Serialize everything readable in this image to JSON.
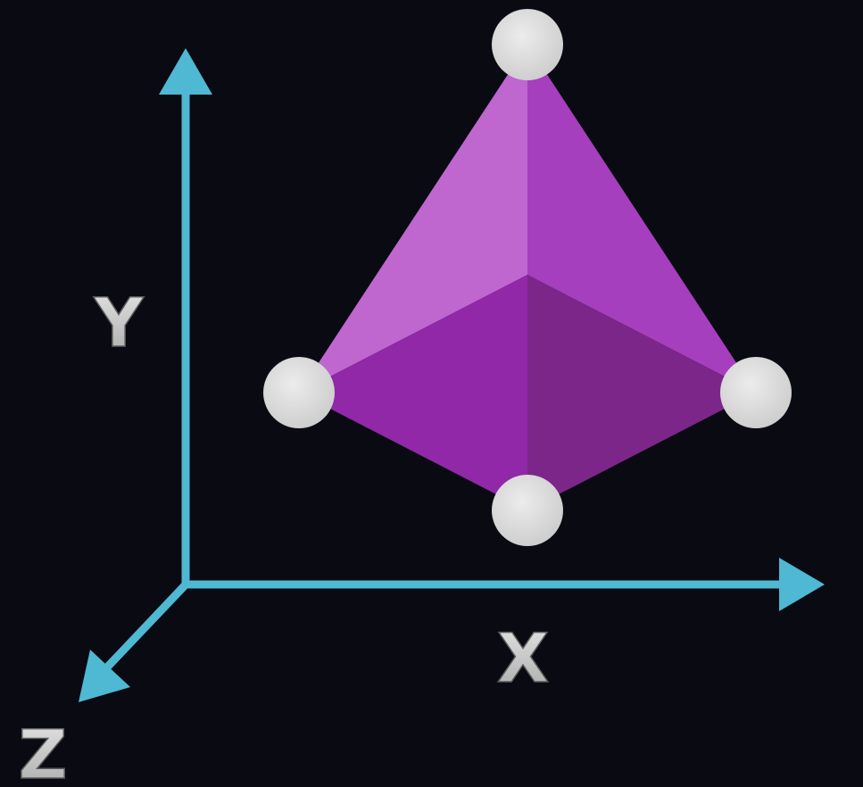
{
  "axes": {
    "x_label": "X",
    "y_label": "Y",
    "z_label": "Z",
    "axis_color": "#4fb8d2",
    "label_color": "#cfcfcf"
  },
  "shape": {
    "vertex_count": 4,
    "face_colors": [
      "#bf66cf",
      "#a53fbd",
      "#9028a8",
      "#7d2689"
    ],
    "vertex_color": "#d9d9d9"
  }
}
